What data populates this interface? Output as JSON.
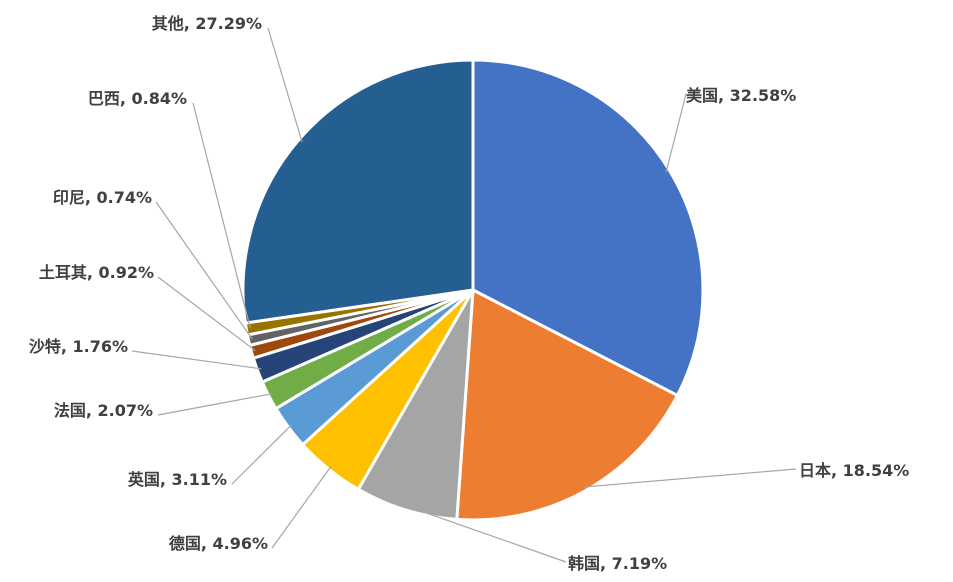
{
  "chart_data": {
    "type": "pie",
    "title": "",
    "label_separator": ", ",
    "slices": [
      {
        "name": "美国",
        "value": 32.58,
        "display": "32.58%",
        "color": "#4472C4"
      },
      {
        "name": "日本",
        "value": 18.54,
        "display": "18.54%",
        "color": "#ED7D31"
      },
      {
        "name": "韩国",
        "value": 7.19,
        "display": "7.19%",
        "color": "#A5A5A5"
      },
      {
        "name": "德国",
        "value": 4.96,
        "display": "4.96%",
        "color": "#FFC000"
      },
      {
        "name": "英国",
        "value": 3.11,
        "display": "3.11%",
        "color": "#5B9BD5"
      },
      {
        "name": "法国",
        "value": 2.07,
        "display": "2.07%",
        "color": "#70AD47"
      },
      {
        "name": "沙特",
        "value": 1.76,
        "display": "1.76%",
        "color": "#264478"
      },
      {
        "name": "土耳其",
        "value": 0.92,
        "display": "0.92%",
        "color": "#9E480E"
      },
      {
        "name": "印尼",
        "value": 0.74,
        "display": "0.74%",
        "color": "#636363"
      },
      {
        "name": "巴西",
        "value": 0.84,
        "display": "0.84%",
        "color": "#997300"
      },
      {
        "name": "其他",
        "value": 27.29,
        "display": "27.29%",
        "color": "#255E91"
      }
    ]
  }
}
